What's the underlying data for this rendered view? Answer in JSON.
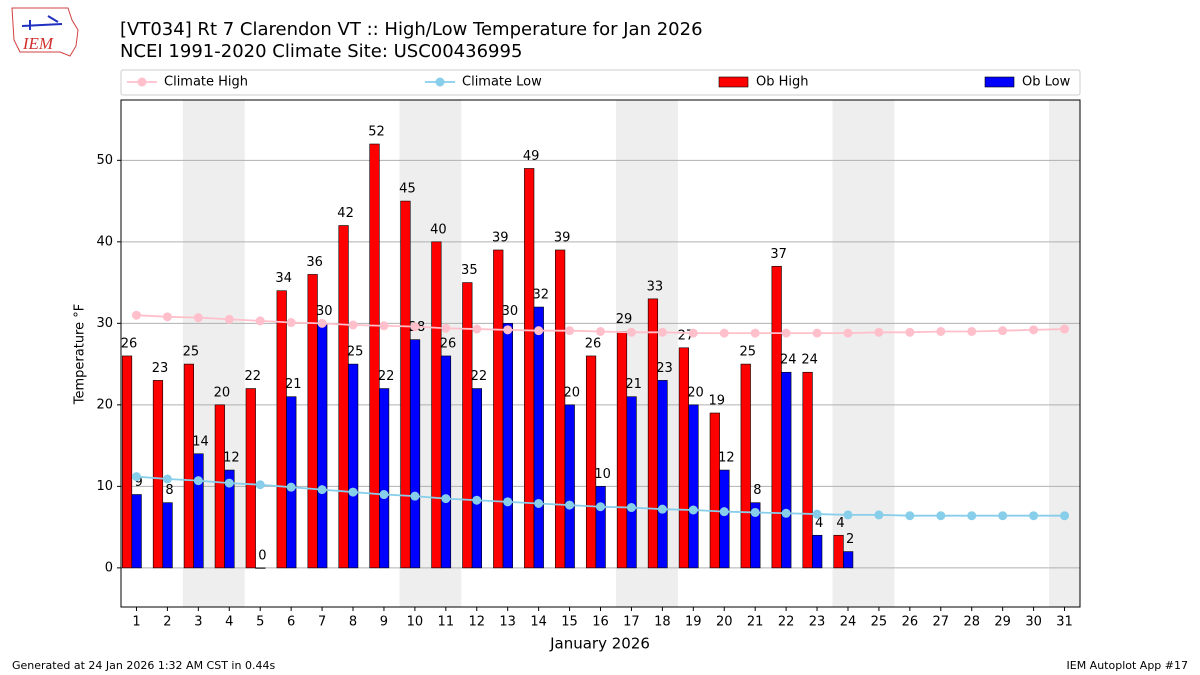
{
  "logo_text": "IEM",
  "footer_left": "Generated at 24 Jan 2026 1:32 AM CST in 0.44s",
  "footer_right": "IEM Autoplot App #17",
  "chart_data": {
    "type": "bar_line",
    "title": "[VT034] Rt 7 Clarendon  VT :: High/Low Temperature for Jan 2026",
    "subtitle": "NCEI 1991-2020 Climate Site: USC00436995",
    "xlabel": "January 2026",
    "ylabel": "Temperature °F",
    "x": [
      1,
      2,
      3,
      4,
      5,
      6,
      7,
      8,
      9,
      10,
      11,
      12,
      13,
      14,
      15,
      16,
      17,
      18,
      19,
      20,
      21,
      22,
      23,
      24,
      25,
      26,
      27,
      28,
      29,
      30,
      31
    ],
    "xlim": [
      0.5,
      31.5
    ],
    "xticks": [
      1,
      2,
      3,
      4,
      5,
      6,
      7,
      8,
      9,
      10,
      11,
      12,
      13,
      14,
      15,
      16,
      17,
      18,
      19,
      20,
      21,
      22,
      23,
      24,
      25,
      26,
      27,
      28,
      29,
      30,
      31
    ],
    "ylim": [
      -4.8,
      57.4
    ],
    "yticks": [
      0,
      10,
      20,
      30,
      40,
      50
    ],
    "grid": true,
    "shaded_ranges": [
      [
        2.5,
        4.5
      ],
      [
        9.5,
        11.5
      ],
      [
        16.5,
        18.5
      ],
      [
        23.5,
        25.5
      ],
      [
        30.5,
        31.5
      ]
    ],
    "shade_color": "#eeeeee",
    "series": [
      {
        "name": "Climate High",
        "kind": "line",
        "color": "#ffc0cb",
        "values": [
          31.0,
          30.8,
          30.7,
          30.5,
          30.3,
          30.1,
          30.0,
          29.8,
          29.7,
          29.6,
          29.4,
          29.3,
          29.2,
          29.1,
          29.1,
          29.0,
          28.9,
          28.9,
          28.8,
          28.8,
          28.8,
          28.8,
          28.8,
          28.8,
          28.9,
          28.9,
          29.0,
          29.0,
          29.1,
          29.2,
          29.3
        ]
      },
      {
        "name": "Climate Low",
        "kind": "line",
        "color": "#87ceeb",
        "values": [
          11.2,
          10.9,
          10.7,
          10.4,
          10.2,
          9.9,
          9.6,
          9.3,
          9.0,
          8.8,
          8.5,
          8.3,
          8.1,
          7.9,
          7.7,
          7.5,
          7.4,
          7.2,
          7.1,
          6.9,
          6.8,
          6.7,
          6.6,
          6.5,
          6.5,
          6.4,
          6.4,
          6.4,
          6.4,
          6.4,
          6.4
        ]
      },
      {
        "name": "Ob High",
        "kind": "bar",
        "color": "#ff0000",
        "values": [
          26,
          23,
          25,
          20,
          22,
          34,
          36,
          42,
          52,
          45,
          40,
          35,
          39,
          49,
          39,
          26,
          29,
          33,
          27,
          19,
          25,
          37,
          24,
          4,
          null,
          null,
          null,
          null,
          null,
          null,
          null
        ]
      },
      {
        "name": "Ob Low",
        "kind": "bar",
        "color": "#0000ff",
        "values": [
          9,
          8,
          14,
          12,
          0,
          21,
          30,
          25,
          22,
          28,
          26,
          22,
          30,
          32,
          20,
          10,
          21,
          23,
          20,
          12,
          8,
          24,
          4,
          2,
          null,
          null,
          null,
          null,
          null,
          null,
          null
        ]
      }
    ]
  }
}
